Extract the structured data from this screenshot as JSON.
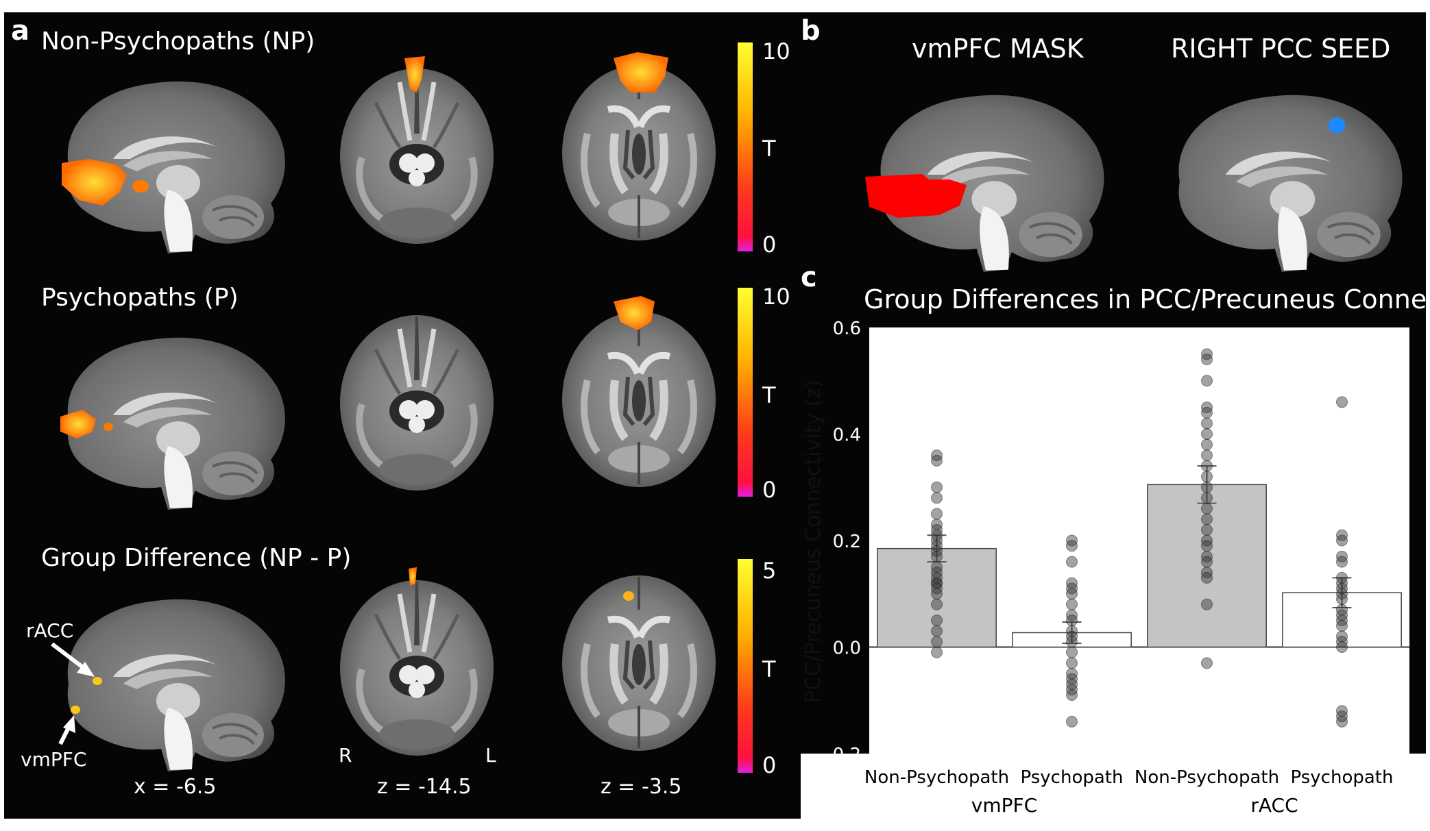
{
  "panels": {
    "a": {
      "label": "a",
      "rows": [
        {
          "title": "Non-Psychopaths (NP)",
          "colorbar": {
            "max": "10",
            "mid": "T",
            "min": "0"
          }
        },
        {
          "title": "Psychopaths (P)",
          "colorbar": {
            "max": "10",
            "mid": "T",
            "min": "0"
          }
        },
        {
          "title": "Group Difference (NP - P)",
          "colorbar": {
            "max": "5",
            "mid": "T",
            "min": "0"
          }
        }
      ],
      "annotations": {
        "racc": "rACC",
        "vmpfc": "vmPFC",
        "right": "R",
        "left": "L"
      },
      "coords": {
        "x": "x = -6.5",
        "z1": "z = -14.5",
        "z2": "z = -3.5"
      }
    },
    "b": {
      "label": "b",
      "titles": [
        "vmPFC MASK",
        "RIGHT PCC SEED"
      ]
    },
    "c": {
      "label": "c",
      "title": "Group Differences in PCC/Precuneus Connectivity"
    }
  },
  "colors": {
    "heat_high": "#ffee00",
    "heat_mid": "#ff7a00",
    "heat_low": "#ff1a2e",
    "heat_min": "#e81ee0",
    "mask_red": "#ff0000",
    "seed_blue": "#1e88ff",
    "bar_np": "#c4c4c4",
    "bar_p": "#ffffff"
  },
  "chart_data": {
    "type": "bar",
    "title": "Group Differences in PCC/Precuneus Connectivity",
    "ylabel": "PCC/Precuneus Connectivity (z)",
    "ylim": [
      -0.2,
      0.6
    ],
    "yticks": [
      "0.6",
      "0.4",
      "0.2",
      "0.0",
      "- 0.2"
    ],
    "group_labels": [
      "vmPFC",
      "rACC"
    ],
    "categories": [
      "Non-Psychopath",
      "Psychopath",
      "Non-Psychopath",
      "Psychopath"
    ],
    "values": [
      0.185,
      0.027,
      0.305,
      0.102
    ],
    "errors": [
      0.025,
      0.02,
      0.035,
      0.028
    ],
    "points": [
      [
        0.36,
        0.35,
        0.3,
        0.28,
        0.25,
        0.23,
        0.22,
        0.21,
        0.2,
        0.19,
        0.18,
        0.17,
        0.15,
        0.14,
        0.13,
        0.12,
        0.12,
        0.11,
        0.1,
        0.08,
        0.05,
        0.03,
        0.01,
        -0.01
      ],
      [
        0.2,
        0.19,
        0.16,
        0.12,
        0.11,
        0.1,
        0.08,
        0.06,
        0.05,
        0.03,
        0.02,
        0.01,
        -0.01,
        -0.03,
        -0.05,
        -0.06,
        -0.07,
        -0.08,
        -0.09,
        -0.14
      ],
      [
        0.55,
        0.54,
        0.5,
        0.45,
        0.44,
        0.42,
        0.4,
        0.38,
        0.36,
        0.34,
        0.32,
        0.3,
        0.28,
        0.26,
        0.24,
        0.22,
        0.2,
        0.19,
        0.17,
        0.16,
        0.14,
        0.13,
        0.08,
        -0.03
      ],
      [
        0.46,
        0.21,
        0.2,
        0.17,
        0.16,
        0.13,
        0.12,
        0.11,
        0.1,
        0.09,
        0.07,
        0.06,
        0.05,
        0.04,
        0.02,
        0.01,
        0.0,
        -0.12,
        -0.13,
        -0.14
      ]
    ]
  }
}
